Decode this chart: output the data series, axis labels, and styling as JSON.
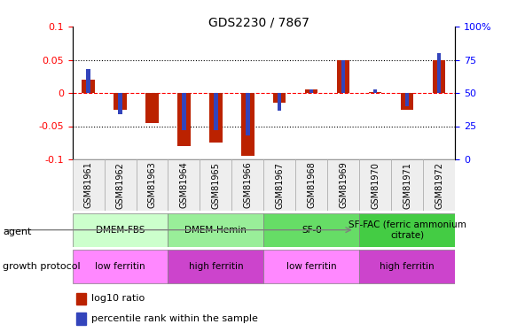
{
  "title": "GDS2230 / 7867",
  "samples": [
    "GSM81961",
    "GSM81962",
    "GSM81963",
    "GSM81964",
    "GSM81965",
    "GSM81966",
    "GSM81967",
    "GSM81968",
    "GSM81969",
    "GSM81970",
    "GSM81971",
    "GSM81972"
  ],
  "log10_ratio": [
    0.02,
    -0.025,
    -0.045,
    -0.08,
    -0.075,
    -0.095,
    -0.015,
    0.005,
    0.05,
    0.002,
    -0.025,
    0.05
  ],
  "percentile_rank": [
    68,
    34,
    50,
    22,
    22,
    18,
    37,
    53,
    75,
    53,
    40,
    80
  ],
  "agent_groups": [
    {
      "label": "DMEM-FBS",
      "start": 0,
      "end": 3,
      "color": "#ccffcc"
    },
    {
      "label": "DMEM-Hemin",
      "start": 3,
      "end": 6,
      "color": "#99ee99"
    },
    {
      "label": "SF-0",
      "start": 6,
      "end": 9,
      "color": "#66dd66"
    },
    {
      "label": "SF-FAC (ferric ammonium\ncitrate)",
      "start": 9,
      "end": 12,
      "color": "#44cc44"
    }
  ],
  "growth_groups": [
    {
      "label": "low ferritin",
      "start": 0,
      "end": 3,
      "color": "#ff88ff"
    },
    {
      "label": "high ferritin",
      "start": 3,
      "end": 6,
      "color": "#cc44cc"
    },
    {
      "label": "low ferritin",
      "start": 6,
      "end": 9,
      "color": "#ff88ff"
    },
    {
      "label": "high ferritin",
      "start": 9,
      "end": 12,
      "color": "#cc44cc"
    }
  ],
  "bar_color_red": "#bb2200",
  "bar_color_blue": "#3344bb",
  "ylim": [
    -0.1,
    0.1
  ],
  "yticks": [
    -0.1,
    -0.05,
    0.0,
    0.05,
    0.1
  ],
  "ytick_labels": [
    "-0.1",
    "-0.05",
    "0",
    "0.05",
    "0.1"
  ],
  "y2ticks": [
    0,
    25,
    50,
    75,
    100
  ],
  "y2tick_labels": [
    "0",
    "25",
    "50",
    "75",
    "100%"
  ],
  "bar_width": 0.4,
  "blue_bar_width": 0.12
}
